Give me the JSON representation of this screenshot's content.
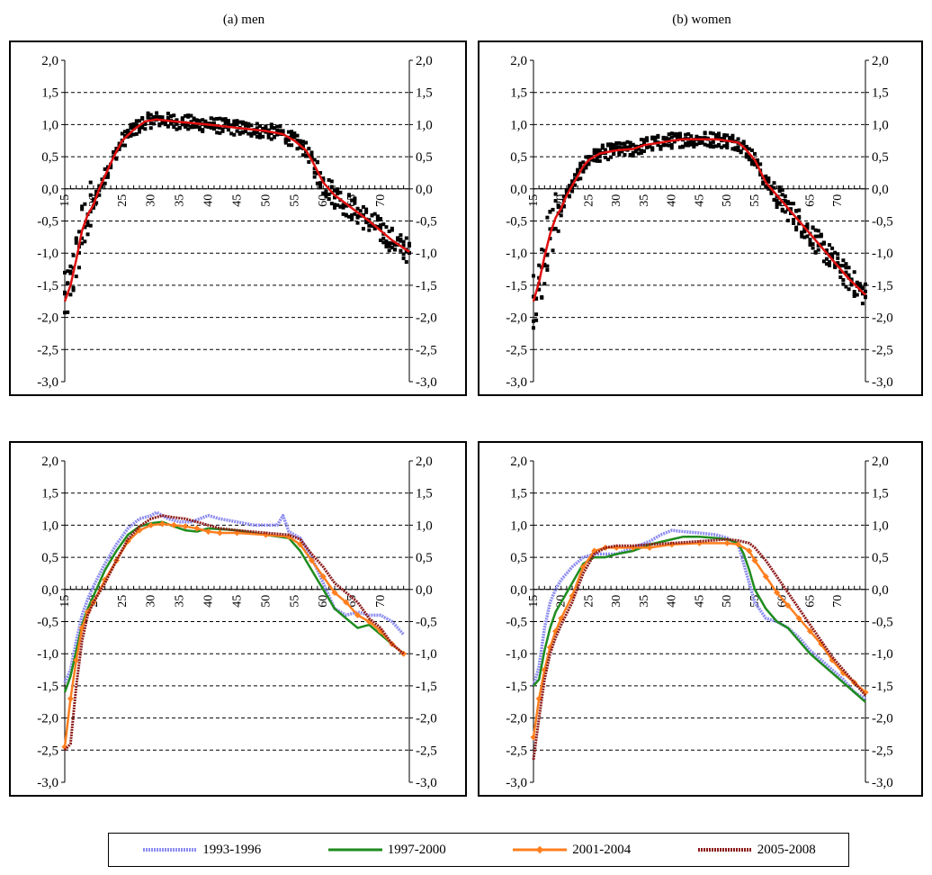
{
  "titles": {
    "men": "(a) men",
    "women": "(b) women"
  },
  "colors": {
    "s1": "#8c8cf0",
    "s2": "#1e8c1e",
    "s3": "#ff7f1f",
    "s4": "#8c1a1a",
    "fit": "#e01010",
    "dots": "#000000"
  },
  "legend": [
    {
      "name": "1993-1996",
      "color": "#8c8cf0",
      "style": "dotted-thick"
    },
    {
      "name": "1997-2000",
      "color": "#1e8c1e",
      "style": "solid"
    },
    {
      "name": "2001-2004",
      "color": "#ff7f1f",
      "style": "diamond"
    },
    {
      "name": "2005-2008",
      "color": "#8c1a1a",
      "style": "dotted-thick"
    }
  ],
  "chart_data": [
    {
      "type": "scatter",
      "panel": "men-top",
      "ylim": [
        -3.0,
        2.0
      ],
      "xlim": [
        15,
        75
      ],
      "y_ticks": [
        "2,0",
        "1,5",
        "1,0",
        "0,5",
        "0,0",
        "-0,5",
        "-1,0",
        "-1,5",
        "-2,0",
        "-2,5",
        "-3,0"
      ],
      "x_ticks": [
        "15",
        "20",
        "25",
        "30",
        "35",
        "40",
        "45",
        "50",
        "55",
        "60",
        "65",
        "70"
      ],
      "grid": "horizontal-dashed",
      "fit_line": {
        "x": [
          15,
          16,
          17,
          18,
          19,
          20,
          21,
          22,
          23,
          24,
          25,
          27,
          29,
          31,
          33,
          35,
          40,
          45,
          50,
          53,
          55,
          57,
          58,
          60,
          62,
          65,
          68,
          70,
          72,
          75
        ],
        "y": [
          -1.75,
          -1.5,
          -1.1,
          -0.65,
          -0.4,
          -0.25,
          0.0,
          0.2,
          0.4,
          0.58,
          0.75,
          0.92,
          1.05,
          1.08,
          1.06,
          1.04,
          1.0,
          0.95,
          0.9,
          0.85,
          0.75,
          0.6,
          0.45,
          0.1,
          -0.1,
          -0.3,
          -0.5,
          -0.65,
          -0.8,
          -0.98
        ]
      }
    },
    {
      "type": "scatter",
      "panel": "women-top",
      "ylim": [
        -3.0,
        2.0
      ],
      "xlim": [
        15,
        75
      ],
      "y_ticks": [
        "2,0",
        "1,5",
        "1,0",
        "0,5",
        "0,0",
        "-0,5",
        "-1,0",
        "-1,5",
        "-2,0",
        "-2,5",
        "-3,0"
      ],
      "x_ticks": [
        "15",
        "20",
        "25",
        "30",
        "35",
        "40",
        "45",
        "50",
        "55",
        "60",
        "65",
        "70"
      ],
      "grid": "horizontal-dashed",
      "fit_line": {
        "x": [
          15,
          16,
          17,
          18,
          19,
          20,
          21,
          22,
          23,
          24,
          25,
          27,
          30,
          33,
          35,
          38,
          40,
          42,
          45,
          48,
          50,
          52,
          53,
          55,
          57,
          58,
          60,
          62,
          65,
          68,
          70,
          72,
          75
        ],
        "y": [
          -1.75,
          -1.45,
          -1.05,
          -0.7,
          -0.45,
          -0.3,
          -0.1,
          0.05,
          0.2,
          0.35,
          0.45,
          0.55,
          0.6,
          0.62,
          0.68,
          0.72,
          0.75,
          0.77,
          0.77,
          0.77,
          0.75,
          0.72,
          0.65,
          0.45,
          0.1,
          0.0,
          -0.2,
          -0.4,
          -0.7,
          -1.0,
          -1.2,
          -1.4,
          -1.65
        ]
      }
    },
    {
      "type": "line",
      "panel": "men-bottom",
      "ylim": [
        -3.0,
        2.0
      ],
      "xlim": [
        15,
        75
      ],
      "y_ticks": [
        "2,0",
        "1,5",
        "1,0",
        "0,5",
        "0,0",
        "-0,5",
        "-1,0",
        "-1,5",
        "-2,0",
        "-2,5",
        "-3,0"
      ],
      "x_ticks": [
        "15",
        "20",
        "25",
        "30",
        "35",
        "40",
        "45",
        "50",
        "55",
        "60",
        "65",
        "70"
      ],
      "grid": "horizontal-dashed",
      "series": [
        {
          "name": "1993-1996",
          "x": [
            15,
            16,
            17,
            18,
            19,
            20,
            22,
            24,
            26,
            28,
            30,
            31,
            33,
            35,
            37,
            40,
            42,
            45,
            48,
            50,
            52,
            53,
            54,
            56,
            58,
            60,
            62,
            64,
            66,
            68,
            70,
            72,
            74
          ],
          "y": [
            -1.45,
            -1.25,
            -0.8,
            -0.4,
            -0.15,
            0.05,
            0.4,
            0.7,
            0.95,
            1.1,
            1.15,
            1.2,
            1.1,
            1.05,
            1.05,
            1.15,
            1.1,
            1.05,
            1.0,
            1.0,
            1.0,
            1.15,
            0.9,
            0.8,
            0.5,
            0.1,
            -0.3,
            -0.4,
            -0.35,
            -0.4,
            -0.4,
            -0.5,
            -0.7
          ]
        },
        {
          "name": "1997-2000",
          "x": [
            15,
            16,
            17,
            18,
            19,
            20,
            22,
            24,
            26,
            28,
            30,
            32,
            34,
            36,
            38,
            40,
            45,
            50,
            54,
            56,
            58,
            60,
            62,
            64,
            66,
            68,
            70,
            72,
            74
          ],
          "y": [
            -1.6,
            -1.35,
            -0.95,
            -0.55,
            -0.3,
            -0.1,
            0.3,
            0.6,
            0.85,
            0.98,
            1.03,
            1.05,
            0.98,
            0.92,
            0.9,
            0.95,
            0.92,
            0.85,
            0.8,
            0.6,
            0.3,
            0.0,
            -0.3,
            -0.45,
            -0.6,
            -0.55,
            -0.7,
            -0.85,
            -1.0
          ]
        },
        {
          "name": "2001-2004",
          "x": [
            15,
            16,
            17,
            18,
            19,
            20,
            22,
            24,
            26,
            28,
            30,
            32,
            34,
            36,
            38,
            40,
            42,
            45,
            50,
            54,
            56,
            58,
            60,
            62,
            64,
            66,
            68,
            70,
            72,
            74
          ],
          "y": [
            -2.45,
            -1.7,
            -1.1,
            -0.6,
            -0.35,
            -0.2,
            0.15,
            0.45,
            0.75,
            0.92,
            1.0,
            1.02,
            1.0,
            0.98,
            0.95,
            0.9,
            0.88,
            0.88,
            0.85,
            0.82,
            0.7,
            0.45,
            0.2,
            -0.05,
            -0.2,
            -0.4,
            -0.5,
            -0.65,
            -0.85,
            -1.0
          ]
        },
        {
          "name": "2005-2008",
          "x": [
            15,
            16,
            17,
            18,
            19,
            20,
            22,
            24,
            26,
            28,
            30,
            32,
            34,
            36,
            38,
            40,
            42,
            45,
            50,
            54,
            56,
            58,
            60,
            62,
            64,
            66,
            68,
            70,
            72,
            74
          ],
          "y": [
            -2.5,
            -2.4,
            -1.5,
            -0.8,
            -0.4,
            -0.2,
            0.1,
            0.45,
            0.78,
            0.98,
            1.1,
            1.15,
            1.12,
            1.1,
            1.05,
            1.0,
            0.95,
            0.92,
            0.88,
            0.85,
            0.78,
            0.55,
            0.35,
            0.1,
            -0.05,
            -0.2,
            -0.45,
            -0.6,
            -0.85,
            -1.0
          ]
        }
      ]
    },
    {
      "type": "line",
      "panel": "women-bottom",
      "ylim": [
        -3.0,
        2.0
      ],
      "xlim": [
        15,
        75
      ],
      "y_ticks": [
        "2,0",
        "1,5",
        "1,0",
        "0,5",
        "0,0",
        "-0,5",
        "-1,0",
        "-1,5",
        "-2,0",
        "-2,5",
        "-3,0"
      ],
      "x_ticks": [
        "15",
        "20",
        "25",
        "30",
        "35",
        "40",
        "45",
        "50",
        "55",
        "60",
        "65",
        "70"
      ],
      "grid": "horizontal-dashed",
      "series": [
        {
          "name": "1993-1996",
          "x": [
            15,
            16,
            17,
            18,
            19,
            20,
            22,
            24,
            26,
            28,
            30,
            33,
            36,
            38,
            40,
            42,
            45,
            48,
            50,
            52,
            53,
            54,
            55,
            57,
            59,
            61,
            63,
            65,
            67,
            69,
            71,
            73,
            75
          ],
          "y": [
            -1.5,
            -1.2,
            -0.6,
            -0.2,
            0.0,
            0.15,
            0.35,
            0.5,
            0.55,
            0.55,
            0.55,
            0.65,
            0.75,
            0.85,
            0.92,
            0.9,
            0.88,
            0.85,
            0.8,
            0.7,
            0.4,
            0.1,
            -0.2,
            -0.45,
            -0.5,
            -0.6,
            -0.75,
            -0.95,
            -1.1,
            -1.25,
            -1.4,
            -1.6,
            -1.7
          ]
        },
        {
          "name": "1997-2000",
          "x": [
            15,
            16,
            17,
            18,
            19,
            20,
            22,
            24,
            26,
            28,
            30,
            33,
            36,
            40,
            42,
            45,
            48,
            50,
            52,
            53,
            54,
            55,
            57,
            59,
            61,
            63,
            65,
            67,
            69,
            71,
            73,
            75
          ],
          "y": [
            -1.5,
            -1.4,
            -0.95,
            -0.6,
            -0.35,
            -0.2,
            0.1,
            0.4,
            0.5,
            0.5,
            0.55,
            0.6,
            0.7,
            0.78,
            0.82,
            0.82,
            0.8,
            0.78,
            0.72,
            0.55,
            0.3,
            0.0,
            -0.3,
            -0.5,
            -0.6,
            -0.8,
            -1.0,
            -1.15,
            -1.3,
            -1.45,
            -1.6,
            -1.75
          ]
        },
        {
          "name": "2001-2004",
          "x": [
            15,
            16,
            17,
            18,
            19,
            20,
            22,
            24,
            26,
            28,
            30,
            33,
            36,
            40,
            45,
            50,
            52,
            54,
            55,
            57,
            59,
            61,
            63,
            65,
            67,
            69,
            71,
            73,
            75
          ],
          "y": [
            -2.3,
            -1.7,
            -1.25,
            -0.9,
            -0.65,
            -0.45,
            -0.1,
            0.35,
            0.6,
            0.65,
            0.65,
            0.65,
            0.65,
            0.7,
            0.72,
            0.72,
            0.7,
            0.6,
            0.45,
            0.2,
            -0.05,
            -0.25,
            -0.45,
            -0.65,
            -0.85,
            -1.1,
            -1.3,
            -1.45,
            -1.6
          ]
        },
        {
          "name": "2005-2008",
          "x": [
            15,
            16,
            17,
            18,
            19,
            20,
            22,
            24,
            26,
            28,
            30,
            33,
            36,
            40,
            45,
            50,
            52,
            54,
            55,
            57,
            59,
            61,
            63,
            65,
            67,
            69,
            71,
            73,
            75
          ],
          "y": [
            -2.65,
            -2.0,
            -1.4,
            -1.0,
            -0.75,
            -0.55,
            -0.2,
            0.25,
            0.55,
            0.65,
            0.68,
            0.68,
            0.7,
            0.72,
            0.75,
            0.78,
            0.76,
            0.72,
            0.65,
            0.45,
            0.2,
            -0.05,
            -0.3,
            -0.55,
            -0.8,
            -1.05,
            -1.25,
            -1.45,
            -1.65
          ]
        }
      ]
    }
  ]
}
